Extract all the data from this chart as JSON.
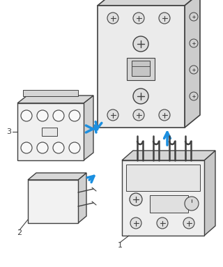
{
  "bg_color": "#ffffff",
  "line_color": "#404040",
  "line_color_light": "#888888",
  "arrow_color": "#1B8FE0",
  "shadow_color": "#cccccc",
  "dark_face": "#c8c8c8",
  "mid_face": "#d8d8d8",
  "light_face": "#ebebeb",
  "fig_width": 3.2,
  "fig_height": 3.83,
  "dpi": 100
}
